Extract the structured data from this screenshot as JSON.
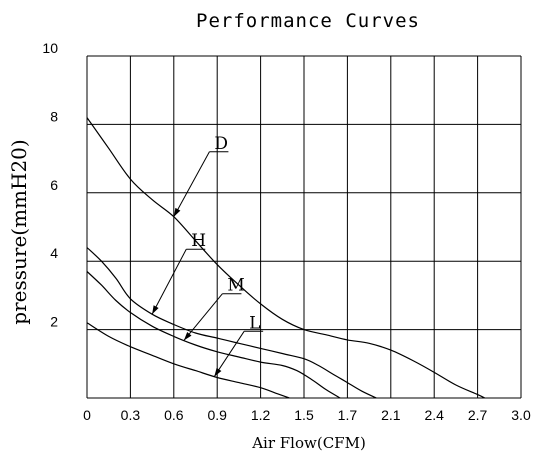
{
  "chart_data": {
    "type": "line",
    "title": "Performance Curves",
    "xlabel": "Air Flow(CFM)",
    "ylabel": "pressure(mmH20)",
    "xlim": [
      0,
      3.0
    ],
    "ylim": [
      0,
      10
    ],
    "x_ticks": [
      "0",
      "0.3",
      "0.6",
      "0.9",
      "1.2",
      "1.5",
      "1.7",
      "2.1",
      "2.4",
      "2.7",
      "3.0"
    ],
    "y_ticks": [
      "2",
      "4",
      "6",
      "8",
      "10"
    ],
    "grid": true,
    "legend": "none",
    "series": [
      {
        "name": "D",
        "x": [
          0,
          0.15,
          0.3,
          0.45,
          0.6,
          0.75,
          0.9,
          1.05,
          1.2,
          1.35,
          1.5,
          1.65,
          1.8,
          1.95,
          2.1,
          2.25,
          2.4,
          2.55,
          2.7,
          2.75
        ],
        "y": [
          8.2,
          7.3,
          6.4,
          5.8,
          5.3,
          4.6,
          3.9,
          3.3,
          2.75,
          2.3,
          2.0,
          1.85,
          1.7,
          1.6,
          1.4,
          1.1,
          0.75,
          0.38,
          0.1,
          0
        ]
      },
      {
        "name": "H",
        "x": [
          0,
          0.1,
          0.2,
          0.3,
          0.45,
          0.6,
          0.75,
          0.9,
          1.05,
          1.2,
          1.35,
          1.5,
          1.6,
          1.7,
          1.8,
          1.9,
          2.0
        ],
        "y": [
          4.4,
          4.0,
          3.5,
          2.9,
          2.45,
          2.15,
          1.9,
          1.75,
          1.6,
          1.45,
          1.3,
          1.15,
          0.95,
          0.7,
          0.45,
          0.2,
          0
        ]
      },
      {
        "name": "M",
        "x": [
          0,
          0.1,
          0.2,
          0.3,
          0.45,
          0.6,
          0.75,
          0.9,
          1.05,
          1.2,
          1.35,
          1.45,
          1.55,
          1.65,
          1.75
        ],
        "y": [
          3.7,
          3.3,
          2.85,
          2.5,
          2.1,
          1.8,
          1.55,
          1.35,
          1.2,
          1.05,
          0.95,
          0.8,
          0.55,
          0.25,
          0
        ]
      },
      {
        "name": "L",
        "x": [
          0,
          0.15,
          0.3,
          0.45,
          0.6,
          0.75,
          0.9,
          1.05,
          1.2,
          1.3,
          1.4
        ],
        "y": [
          2.2,
          1.8,
          1.5,
          1.25,
          1.0,
          0.8,
          0.6,
          0.45,
          0.3,
          0.15,
          0
        ]
      }
    ],
    "curve_labels": [
      {
        "text": "D",
        "series": "D",
        "at_x": 0.6,
        "label_x": 0.86,
        "label_y": 7.2
      },
      {
        "text": "H",
        "series": "H",
        "at_x": 0.45,
        "label_x": 0.7,
        "label_y": 4.35
      },
      {
        "text": "M",
        "series": "M",
        "at_x": 0.67,
        "label_x": 0.95,
        "label_y": 3.05
      },
      {
        "text": "L",
        "series": "L",
        "at_x": 0.88,
        "label_x": 1.1,
        "label_y": 1.95
      }
    ],
    "colors": {
      "line": "#000000",
      "background": "#ffffff"
    }
  }
}
